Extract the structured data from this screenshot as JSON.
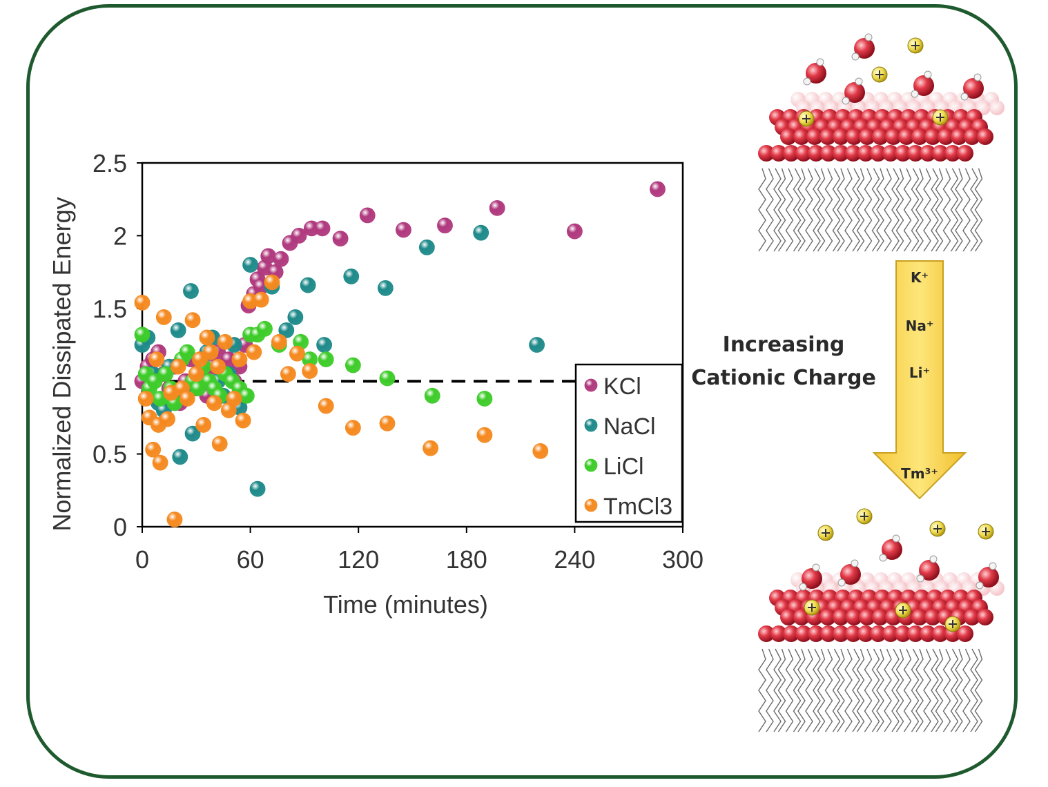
{
  "chart_data": {
    "type": "scatter",
    "xlabel": "Time (minutes)",
    "ylabel": "Normalized Dissipated Energy",
    "xlim": [
      0,
      300
    ],
    "ylim": [
      0,
      2.5
    ],
    "x_ticks": [
      "0",
      "60",
      "120",
      "180",
      "240",
      "300"
    ],
    "y_ticks": [
      "0",
      "0.5",
      "1",
      "1.5",
      "2",
      "2.5"
    ],
    "reference_line": {
      "y": 1,
      "style": "dashed"
    },
    "legend_position": "bottom-right",
    "series": [
      {
        "name": "KCl",
        "color": "#b0397e",
        "points": [
          [
            0,
            1.0
          ],
          [
            3,
            1.1
          ],
          [
            6,
            1.15
          ],
          [
            9,
            1.2
          ],
          [
            12,
            1.05
          ],
          [
            15,
            0.95
          ],
          [
            18,
            1.1
          ],
          [
            21,
            0.85
          ],
          [
            24,
            1.0
          ],
          [
            27,
            1.15
          ],
          [
            30,
            0.95
          ],
          [
            33,
            1.05
          ],
          [
            36,
            0.9
          ],
          [
            39,
            1.1
          ],
          [
            42,
            1.2
          ],
          [
            45,
            1.05
          ],
          [
            48,
            1.15
          ],
          [
            51,
            1.0
          ],
          [
            54,
            1.1
          ],
          [
            57,
            1.25
          ],
          [
            59,
            1.52
          ],
          [
            62,
            1.6
          ],
          [
            64,
            1.7
          ],
          [
            66,
            1.65
          ],
          [
            68,
            1.78
          ],
          [
            70,
            1.86
          ],
          [
            74,
            1.75
          ],
          [
            77,
            1.84
          ],
          [
            82,
            1.95
          ],
          [
            87,
            2.0
          ],
          [
            94,
            2.05
          ],
          [
            100,
            2.05
          ],
          [
            110,
            1.98
          ],
          [
            125,
            2.14
          ],
          [
            145,
            2.04
          ],
          [
            168,
            2.07
          ],
          [
            197,
            2.19
          ],
          [
            240,
            2.03
          ],
          [
            286,
            2.32
          ]
        ]
      },
      {
        "name": "NaCl",
        "color": "#1f8a8a",
        "points": [
          [
            0,
            1.25
          ],
          [
            3,
            1.3
          ],
          [
            6,
            1.05
          ],
          [
            9,
            0.85
          ],
          [
            12,
            0.8
          ],
          [
            15,
            1.1
          ],
          [
            18,
            0.85
          ],
          [
            20,
            1.35
          ],
          [
            21,
            0.48
          ],
          [
            24,
            0.9
          ],
          [
            27,
            1.62
          ],
          [
            28,
            0.64
          ],
          [
            30,
            1.05
          ],
          [
            33,
            1.0
          ],
          [
            36,
            1.2
          ],
          [
            39,
            1.3
          ],
          [
            42,
            1.0
          ],
          [
            45,
            0.9
          ],
          [
            48,
            1.05
          ],
          [
            51,
            1.25
          ],
          [
            54,
            0.82
          ],
          [
            57,
            0.9
          ],
          [
            60,
            1.8
          ],
          [
            64,
            0.26
          ],
          [
            72,
            1.65
          ],
          [
            80,
            1.35
          ],
          [
            85,
            1.44
          ],
          [
            92,
            1.66
          ],
          [
            101,
            1.25
          ],
          [
            116,
            1.72
          ],
          [
            135,
            1.64
          ],
          [
            158,
            1.92
          ],
          [
            188,
            2.02
          ],
          [
            219,
            1.25
          ]
        ]
      },
      {
        "name": "LiCl",
        "color": "#3ecc2a",
        "points": [
          [
            0,
            1.32
          ],
          [
            2,
            1.05
          ],
          [
            4,
            0.95
          ],
          [
            7,
            1.0
          ],
          [
            10,
            0.88
          ],
          [
            13,
            1.05
          ],
          [
            16,
            0.95
          ],
          [
            18,
            0.85
          ],
          [
            22,
            1.15
          ],
          [
            25,
            1.2
          ],
          [
            28,
            1.0
          ],
          [
            31,
            0.95
          ],
          [
            34,
            1.1
          ],
          [
            37,
            1.0
          ],
          [
            40,
            0.95
          ],
          [
            43,
            0.9
          ],
          [
            46,
            1.05
          ],
          [
            50,
            1.0
          ],
          [
            54,
            0.95
          ],
          [
            58,
            0.9
          ],
          [
            60,
            1.32
          ],
          [
            64,
            1.32
          ],
          [
            68,
            1.36
          ],
          [
            76,
            1.25
          ],
          [
            88,
            1.27
          ],
          [
            93,
            1.15
          ],
          [
            102,
            1.15
          ],
          [
            117,
            1.11
          ],
          [
            136,
            1.02
          ],
          [
            161,
            0.9
          ],
          [
            190,
            0.88
          ]
        ]
      },
      {
        "name": "TmCl3",
        "color": "#f5891f",
        "points": [
          [
            0,
            1.54
          ],
          [
            2,
            0.88
          ],
          [
            4,
            0.75
          ],
          [
            6,
            0.53
          ],
          [
            8,
            1.15
          ],
          [
            9,
            0.7
          ],
          [
            10,
            0.44
          ],
          [
            12,
            1.44
          ],
          [
            14,
            0.74
          ],
          [
            16,
            0.92
          ],
          [
            18,
            0.05
          ],
          [
            20,
            1.1
          ],
          [
            22,
            0.95
          ],
          [
            25,
            0.88
          ],
          [
            28,
            1.42
          ],
          [
            30,
            1.05
          ],
          [
            32,
            1.15
          ],
          [
            34,
            0.7
          ],
          [
            36,
            1.3
          ],
          [
            38,
            1.2
          ],
          [
            40,
            0.85
          ],
          [
            42,
            1.1
          ],
          [
            43,
            0.57
          ],
          [
            46,
            1.27
          ],
          [
            48,
            0.8
          ],
          [
            51,
            0.88
          ],
          [
            54,
            1.15
          ],
          [
            56,
            0.73
          ],
          [
            60,
            1.55
          ],
          [
            62,
            1.2
          ],
          [
            66,
            1.56
          ],
          [
            72,
            1.68
          ],
          [
            76,
            1.27
          ],
          [
            81,
            1.05
          ],
          [
            86,
            1.19
          ],
          [
            93,
            1.07
          ],
          [
            102,
            0.83
          ],
          [
            117,
            0.68
          ],
          [
            136,
            0.71
          ],
          [
            160,
            0.54
          ],
          [
            190,
            0.63
          ],
          [
            221,
            0.52
          ]
        ]
      }
    ]
  },
  "diagram": {
    "arrow_title_line1": "Increasing",
    "arrow_title_line2": "Cationic Charge",
    "ions": [
      "K⁺",
      "Na⁺",
      "Li⁺",
      "Tm³⁺"
    ]
  }
}
